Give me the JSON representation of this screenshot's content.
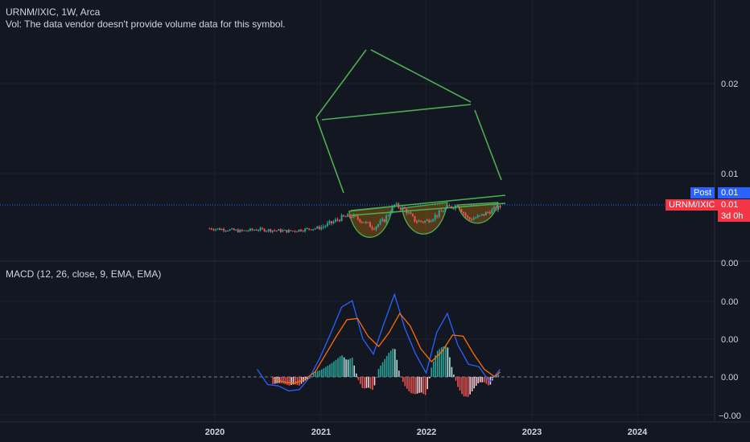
{
  "header": {
    "title": "URNM/IXIC, 1W, Arca",
    "volume_note": "Vol: The data vendor doesn't provide volume data for this symbol."
  },
  "price_tags": {
    "post_label": "Post",
    "post_value": "0.01",
    "symbol_label": "URNM/IXIC",
    "symbol_value": "0.01",
    "countdown": "3d 0h"
  },
  "colors": {
    "background": "#131722",
    "up": "#26a69a",
    "down": "#ef5350",
    "drawing": "#4caf50",
    "macd_line": "#2962ff",
    "signal_line": "#ff6d00",
    "post": "#2962ff",
    "symbol": "#f23645"
  },
  "chart_data": [
    {
      "type": "candlestick",
      "title": "URNM/IXIC, 1W, Arca",
      "x_ticks": [
        "2020",
        "2021",
        "2022",
        "2023",
        "2024"
      ],
      "y_ticks": [
        "0.01",
        "0.02"
      ],
      "grid": true,
      "last_value": 0.0066,
      "close_series": {
        "x": [
          2019.95,
          2020.1,
          2020.25,
          2020.4,
          2020.55,
          2020.7,
          2020.85,
          2021.0,
          2021.1,
          2021.2,
          2021.3,
          2021.4,
          2021.5,
          2021.6,
          2021.7,
          2021.8,
          2021.9,
          2022.0,
          2022.1,
          2022.2,
          2022.3,
          2022.4,
          2022.5,
          2022.6,
          2022.7
        ],
        "y": [
          0.0039,
          0.0038,
          0.0036,
          0.0038,
          0.0037,
          0.0036,
          0.0038,
          0.004,
          0.0045,
          0.0051,
          0.0053,
          0.0047,
          0.004,
          0.0048,
          0.0065,
          0.006,
          0.0047,
          0.0047,
          0.0054,
          0.0062,
          0.0065,
          0.0049,
          0.0052,
          0.0058,
          0.0063
        ]
      },
      "annotations": [
        "trendline above cup tops",
        "three cup (rounding bottom) shapes",
        "hand-drawn house outline"
      ]
    },
    {
      "type": "macd",
      "title": "MACD (12, 26, close, 9, EMA, EMA)",
      "y_ticks": [
        "0.00",
        "0.00",
        "0.00",
        "0.00",
        "−0.00"
      ],
      "series": [
        {
          "name": "MACD",
          "x": [
            2020.4,
            2020.5,
            2020.6,
            2020.7,
            2020.8,
            2020.9,
            2021.0,
            2021.1,
            2021.2,
            2021.3,
            2021.4,
            2021.5,
            2021.6,
            2021.7,
            2021.8,
            2021.9,
            2022.0,
            2022.1,
            2022.2,
            2022.3,
            2022.4,
            2022.5,
            2022.6,
            2022.7
          ],
          "values": [
            6e-05,
            -6e-05,
            -7e-05,
            -0.00011,
            -0.0001,
            0.0,
            0.00016,
            0.00035,
            0.00055,
            0.0006,
            0.0003,
            0.00018,
            0.00042,
            0.00065,
            0.00038,
            0.00018,
            3e-05,
            0.00035,
            0.0005,
            0.00025,
            0.0001,
            8e-05,
            -4e-05,
            6e-05
          ]
        },
        {
          "name": "Signal",
          "x": [
            2020.55,
            2020.65,
            2020.75,
            2020.85,
            2020.95,
            2021.05,
            2021.15,
            2021.25,
            2021.35,
            2021.45,
            2021.55,
            2021.65,
            2021.75,
            2021.85,
            2021.95,
            2022.05,
            2022.15,
            2022.25,
            2022.35,
            2022.45,
            2022.55,
            2022.65,
            2022.7
          ],
          "values": [
            -1e-05,
            -4e-05,
            -5e-05,
            -2e-05,
            4e-05,
            0.00018,
            0.00032,
            0.00045,
            0.00046,
            0.00032,
            0.00024,
            0.00035,
            0.0005,
            0.0004,
            0.00022,
            0.00012,
            0.0002,
            0.00033,
            0.00032,
            0.00018,
            6e-05,
            0.0,
            4e-05
          ]
        }
      ]
    }
  ],
  "xaxis_labels": [
    "2020",
    "2021",
    "2022",
    "2023",
    "2024"
  ],
  "price_axis_labels": [
    "0.02",
    "0.01"
  ],
  "macd_axis_labels": [
    "0.00",
    "0.00",
    "0.00",
    "0.00",
    "−0.00"
  ]
}
